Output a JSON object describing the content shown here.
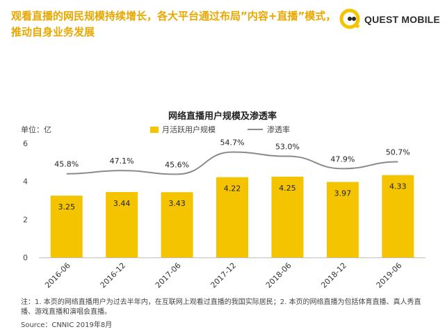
{
  "header": {
    "headline": "观看直播的网民规模持续增长，各大平台通过布局”内容+直播”模式，推动自身业务发展",
    "logo_text": "QUEST MOBILE",
    "brand_color": "#e8a800"
  },
  "chart_data": {
    "type": "bar",
    "title": "网络直播用户规模及渗透率",
    "unit_label": "单位：亿",
    "categories": [
      "2016-06",
      "2016-12",
      "2017-06",
      "2017-12",
      "2018-06",
      "2018-12",
      "2019-06"
    ],
    "series": [
      {
        "name": "月活跃用户规模",
        "type": "bar",
        "values": [
          3.25,
          3.44,
          3.43,
          4.22,
          4.25,
          3.97,
          4.33
        ],
        "color": "#f5c400"
      },
      {
        "name": "渗透率",
        "type": "line",
        "values": [
          45.8,
          47.1,
          45.6,
          54.7,
          53.0,
          47.9,
          50.7
        ],
        "labels": [
          "45.8%",
          "47.1%",
          "45.6%",
          "54.7%",
          "53.0%",
          "47.9%",
          "50.7%"
        ],
        "color": "#8a8a8a"
      }
    ],
    "bar_labels": [
      "3.25",
      "3.44",
      "3.43",
      "4.22",
      "4.25",
      "3.97",
      "4.33"
    ],
    "y_ticks": [
      "0",
      "2",
      "4",
      "6"
    ],
    "ylim": [
      0,
      6
    ],
    "grid": false,
    "legend_position": "top"
  },
  "footer": {
    "note": "注：1. 本页的网络直播用户为过去半年内，在互联网上观看过直播的我国实际居民；2. 本页的网络直播为包括体育直播、真人秀直播、游戏直播和演唱会直播。",
    "source": "Source：CNNIC 2019年8月"
  }
}
